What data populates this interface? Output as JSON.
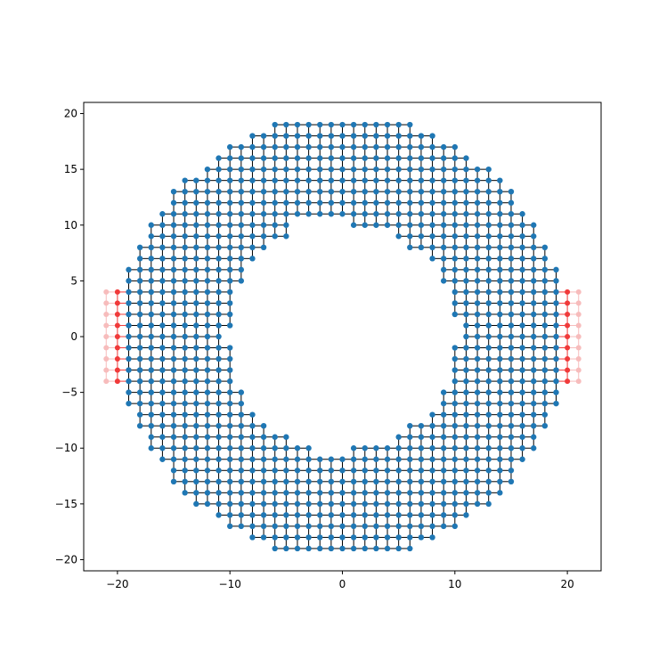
{
  "chart_data": {
    "type": "scatter",
    "title": "",
    "xlabel": "",
    "ylabel": "",
    "xlim": [
      -23,
      23
    ],
    "ylim": [
      -21,
      21
    ],
    "grid": false,
    "legend": "none",
    "xticks": [
      -20,
      -10,
      0,
      10,
      20
    ],
    "yticks": [
      -20,
      -15,
      -10,
      -5,
      0,
      5,
      10,
      15,
      20
    ],
    "x_tick_labels": [
      "−20",
      "−10",
      "0",
      "10",
      "20"
    ],
    "y_tick_labels": [
      "−20",
      "−15",
      "−10",
      "−5",
      "0",
      "5",
      "10",
      "15",
      "20"
    ],
    "lattice": {
      "description": "square-lattice graph: nodes at integer (x,y) with edges between orthogonal neighbours",
      "annulus_rows": [
        {
          "y": 19,
          "x_ranges": [
            [
              -6,
              6
            ]
          ]
        },
        {
          "y": 18,
          "x_ranges": [
            [
              -8,
              8
            ]
          ]
        },
        {
          "y": 17,
          "x_ranges": [
            [
              -10,
              10
            ]
          ]
        },
        {
          "y": 16,
          "x_ranges": [
            [
              -11,
              11
            ]
          ]
        },
        {
          "y": 15,
          "x_ranges": [
            [
              -12,
              13
            ]
          ]
        },
        {
          "y": 14,
          "x_ranges": [
            [
              -14,
              14
            ]
          ]
        },
        {
          "y": 13,
          "x_ranges": [
            [
              -15,
              15
            ]
          ]
        },
        {
          "y": 12,
          "x_ranges": [
            [
              -15,
              15
            ]
          ]
        },
        {
          "y": 11,
          "x_ranges": [
            [
              -16,
              16
            ]
          ]
        },
        {
          "y": 10,
          "x_ranges": [
            [
              -17,
              -5
            ],
            [
              1,
              17
            ]
          ]
        },
        {
          "y": 9,
          "x_ranges": [
            [
              -17,
              -5
            ],
            [
              5,
              17
            ]
          ]
        },
        {
          "y": 8,
          "x_ranges": [
            [
              -18,
              -7
            ],
            [
              6,
              18
            ]
          ]
        },
        {
          "y": 7,
          "x_ranges": [
            [
              -18,
              -8
            ],
            [
              8,
              18
            ]
          ]
        },
        {
          "y": 6,
          "x_ranges": [
            [
              -19,
              -9
            ],
            [
              9,
              19
            ]
          ]
        },
        {
          "y": 5,
          "x_ranges": [
            [
              -19,
              -9
            ],
            [
              9,
              19
            ]
          ]
        },
        {
          "y": 4,
          "x_ranges": [
            [
              -19,
              -10
            ],
            [
              10,
              19
            ]
          ]
        },
        {
          "y": 3,
          "x_ranges": [
            [
              -19,
              -10
            ],
            [
              10,
              19
            ]
          ]
        },
        {
          "y": 2,
          "x_ranges": [
            [
              -19,
              -10
            ],
            [
              10,
              19
            ]
          ]
        },
        {
          "y": 1,
          "x_ranges": [
            [
              -19,
              -10
            ],
            [
              11,
              19
            ]
          ]
        },
        {
          "y": 0,
          "x_ranges": [
            [
              -19,
              -11
            ],
            [
              11,
              19
            ]
          ]
        },
        {
          "y": -1,
          "x_ranges": [
            [
              -19,
              -10
            ],
            [
              10,
              19
            ]
          ]
        },
        {
          "y": -2,
          "x_ranges": [
            [
              -19,
              -10
            ],
            [
              10,
              19
            ]
          ]
        },
        {
          "y": -3,
          "x_ranges": [
            [
              -19,
              -10
            ],
            [
              10,
              19
            ]
          ]
        },
        {
          "y": -4,
          "x_ranges": [
            [
              -19,
              -10
            ],
            [
              10,
              19
            ]
          ]
        },
        {
          "y": -5,
          "x_ranges": [
            [
              -19,
              -9
            ],
            [
              9,
              19
            ]
          ]
        },
        {
          "y": -6,
          "x_ranges": [
            [
              -19,
              -9
            ],
            [
              9,
              19
            ]
          ]
        },
        {
          "y": -7,
          "x_ranges": [
            [
              -18,
              -8
            ],
            [
              8,
              18
            ]
          ]
        },
        {
          "y": -8,
          "x_ranges": [
            [
              -18,
              -7
            ],
            [
              6,
              18
            ]
          ]
        },
        {
          "y": -9,
          "x_ranges": [
            [
              -17,
              -5
            ],
            [
              5,
              17
            ]
          ]
        },
        {
          "y": -10,
          "x_ranges": [
            [
              -17,
              -3
            ],
            [
              1,
              17
            ]
          ]
        },
        {
          "y": -11,
          "x_ranges": [
            [
              -16,
              16
            ]
          ]
        },
        {
          "y": -12,
          "x_ranges": [
            [
              -15,
              15
            ]
          ]
        },
        {
          "y": -13,
          "x_ranges": [
            [
              -15,
              15
            ]
          ]
        },
        {
          "y": -14,
          "x_ranges": [
            [
              -14,
              14
            ]
          ]
        },
        {
          "y": -15,
          "x_ranges": [
            [
              -13,
              13
            ]
          ]
        },
        {
          "y": -16,
          "x_ranges": [
            [
              -11,
              11
            ]
          ]
        },
        {
          "y": -17,
          "x_ranges": [
            [
              -10,
              10
            ]
          ]
        },
        {
          "y": -18,
          "x_ranges": [
            [
              -8,
              8
            ]
          ]
        },
        {
          "y": -19,
          "x_ranges": [
            [
              -6,
              6
            ]
          ]
        }
      ],
      "lead_y_range": [
        -4,
        4
      ],
      "leads": [
        {
          "side": "left",
          "columns": [
            {
              "x": -20,
              "role": "lead-unit-cell"
            },
            {
              "x": -21,
              "role": "lead-next-cell"
            }
          ]
        },
        {
          "side": "right",
          "columns": [
            {
              "x": 20,
              "role": "lead-unit-cell"
            },
            {
              "x": 21,
              "role": "lead-next-cell"
            }
          ]
        }
      ]
    },
    "colors": {
      "site": "#1f77b4",
      "hopping": "#000000",
      "lead-unit-cell": "#f03a3a",
      "lead-next-cell": "#f7bcbc",
      "axes": "#000000",
      "background": "#ffffff"
    }
  }
}
